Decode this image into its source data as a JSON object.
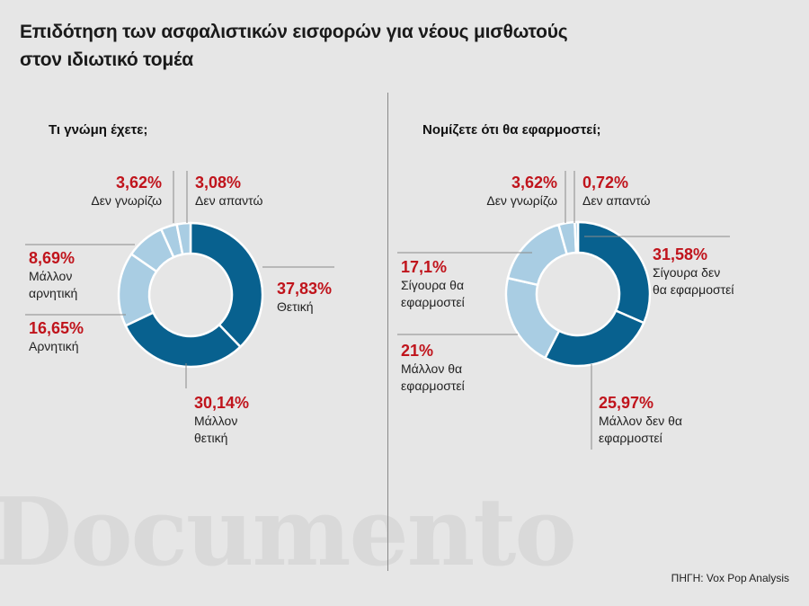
{
  "title_lines": [
    "Επιδότηση των ασφαλιστικών εισφορών για νέους μισθωτούς",
    "στον ιδιωτικό τομέα"
  ],
  "source": "ΠΗΓΗ: Vox Pop Analysis",
  "watermark": "Documento",
  "colors": {
    "dark": "#08618f",
    "light": "#a9cde3",
    "value": "#c0141c",
    "background": "#e6e6e6"
  },
  "chart_data": [
    {
      "type": "pie",
      "title": "Τι γνώμη έχετε;",
      "slices": [
        {
          "value": "37,83%",
          "pct": 37.83,
          "label_lines": [
            "Θετική"
          ],
          "color": "#08618f"
        },
        {
          "value": "30,14%",
          "pct": 30.14,
          "label_lines": [
            "Μάλλον",
            "θετική"
          ],
          "color": "#08618f"
        },
        {
          "value": "16,65%",
          "pct": 16.65,
          "label_lines": [
            "Αρνητική"
          ],
          "color": "#a9cde3"
        },
        {
          "value": "8,69%",
          "pct": 8.69,
          "label_lines": [
            "Μάλλον",
            "αρνητική"
          ],
          "color": "#a9cde3"
        },
        {
          "value": "3,62%",
          "pct": 3.62,
          "label_lines": [
            "Δεν γνωρίζω"
          ],
          "color": "#a9cde3"
        },
        {
          "value": "3,08%",
          "pct": 3.08,
          "label_lines": [
            "Δεν απαντώ"
          ],
          "color": "#a9cde3"
        }
      ]
    },
    {
      "type": "pie",
      "title": "Νομίζετε ότι θα εφαρμοστεί;",
      "slices": [
        {
          "value": "31,58%",
          "pct": 31.58,
          "label_lines": [
            "Σίγουρα δεν",
            "θα εφαρμοστεί"
          ],
          "color": "#08618f"
        },
        {
          "value": "25,97%",
          "pct": 25.97,
          "label_lines": [
            "Μάλλον δεν θα",
            "εφαρμοστεί"
          ],
          "color": "#08618f"
        },
        {
          "value": "21%",
          "pct": 21,
          "label_lines": [
            "Μάλλον θα",
            "εφαρμοστεί"
          ],
          "color": "#a9cde3"
        },
        {
          "value": "17,1%",
          "pct": 17.1,
          "label_lines": [
            "Σίγουρα θα",
            "εφαρμοστεί"
          ],
          "color": "#a9cde3"
        },
        {
          "value": "3,62%",
          "pct": 3.62,
          "label_lines": [
            "Δεν γνωρίζω"
          ],
          "color": "#a9cde3"
        },
        {
          "value": "0,72%",
          "pct": 0.72,
          "label_lines": [
            "Δεν απαντώ"
          ],
          "color": "#a9cde3"
        }
      ]
    }
  ]
}
